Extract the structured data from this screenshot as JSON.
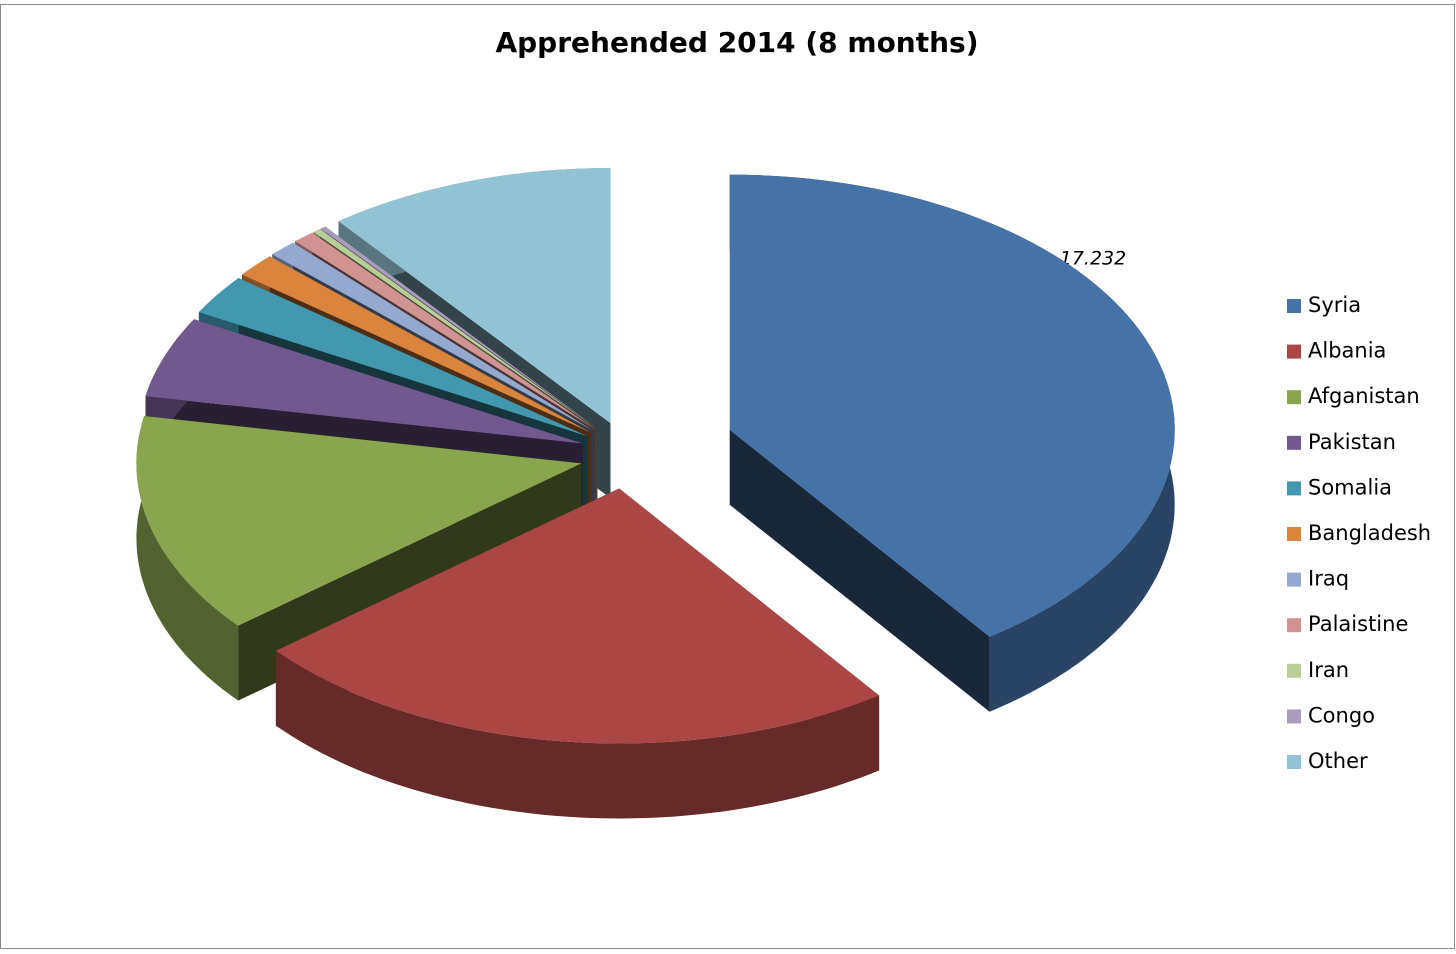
{
  "chart_data": {
    "type": "pie3d",
    "title": "Apprehended 2014 (8 months)",
    "categories": [
      "Syria",
      "Albania",
      "Afganistan",
      "Pakistan",
      "Somalia",
      "Bangladesh",
      "Iraq",
      "Palaistine",
      "Iran",
      "Congo",
      "Other"
    ],
    "values": [
      17.232,
      10.3,
      6.0,
      2.2,
      1.1,
      0.65,
      0.45,
      0.35,
      0.13,
      0.09,
      4.5
    ],
    "colors": [
      "#4572a7",
      "#aa4643",
      "#89a54e",
      "#71588f",
      "#4198af",
      "#db843d",
      "#93a9cf",
      "#d19392",
      "#b9cd96",
      "#a99bbd",
      "#92c3d5"
    ],
    "legend": "right"
  }
}
